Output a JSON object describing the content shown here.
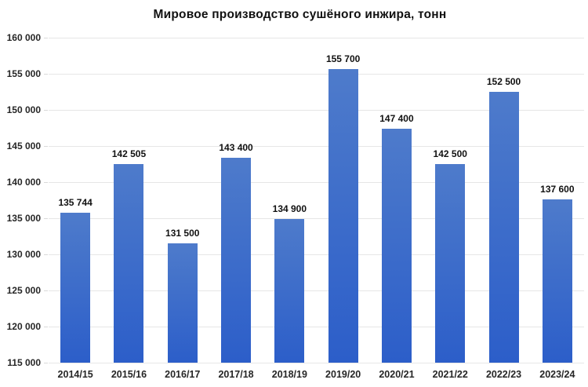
{
  "chart_data": {
    "type": "bar",
    "title": "Мировое производство сушёного инжира, тонн",
    "categories": [
      "2014/15",
      "2015/16",
      "2016/17",
      "2017/18",
      "2018/19",
      "2019/20",
      "2020/21",
      "2021/22",
      "2022/23",
      "2023/24"
    ],
    "values": [
      135744,
      142505,
      131500,
      143400,
      134900,
      155700,
      147400,
      142500,
      152500,
      137600
    ],
    "value_labels": [
      "135 744",
      "142 505",
      "131 500",
      "143 400",
      "134 900",
      "155 700",
      "147 400",
      "142 500",
      "152 500",
      "137 600"
    ],
    "xlabel": "",
    "ylabel": "",
    "ylim": [
      115000,
      160000
    ],
    "y_tick_step": 5000,
    "y_tick_labels": [
      "115 000",
      "120 000",
      "125 000",
      "130 000",
      "135 000",
      "140 000",
      "145 000",
      "150 000",
      "155 000",
      "160 000"
    ],
    "grid": true,
    "legend": "none",
    "colors": {
      "bar_gradient_top": "#4e7bcb",
      "bar_gradient_bottom": "#2c5ec9",
      "gridline": "#e6e6e6",
      "title_text": "#111111",
      "axis_text": "#262626",
      "data_label_text": "#111111",
      "background": "#ffffff"
    }
  }
}
